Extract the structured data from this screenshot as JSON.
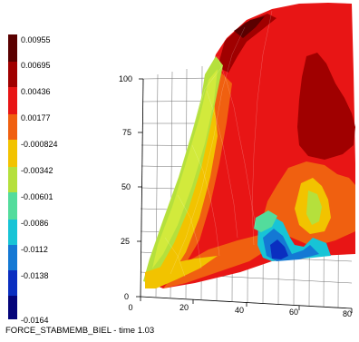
{
  "legend": {
    "levels": [
      {
        "label": "0.00955",
        "color": "#5a0000"
      },
      {
        "label": "0.00695",
        "color": "#a00000"
      },
      {
        "label": "0.00436",
        "color": "#e81515"
      },
      {
        "label": "0.00177",
        "color": "#f06010"
      },
      {
        "label": "-0.000824",
        "color": "#f2c300"
      },
      {
        "label": "-0.00342",
        "color": "#b5e03c"
      },
      {
        "label": "-0.00601",
        "color": "#53dc9c"
      },
      {
        "label": "-0.0086",
        "color": "#17c4d6"
      },
      {
        "label": "-0.0112",
        "color": "#1478d4"
      },
      {
        "label": "-0.0138",
        "color": "#0a2ec0"
      },
      {
        "label": "-0.0164",
        "color": "#04047a"
      }
    ]
  },
  "axes": {
    "y_ticks": [
      "0",
      "25",
      "50",
      "75",
      "100"
    ],
    "x_ticks": [
      "0",
      "20",
      "40",
      "60",
      "80"
    ]
  },
  "footer": {
    "variable": "FORCE_STABMEMB_BIEL",
    "time_text": " - time 1.03"
  }
}
